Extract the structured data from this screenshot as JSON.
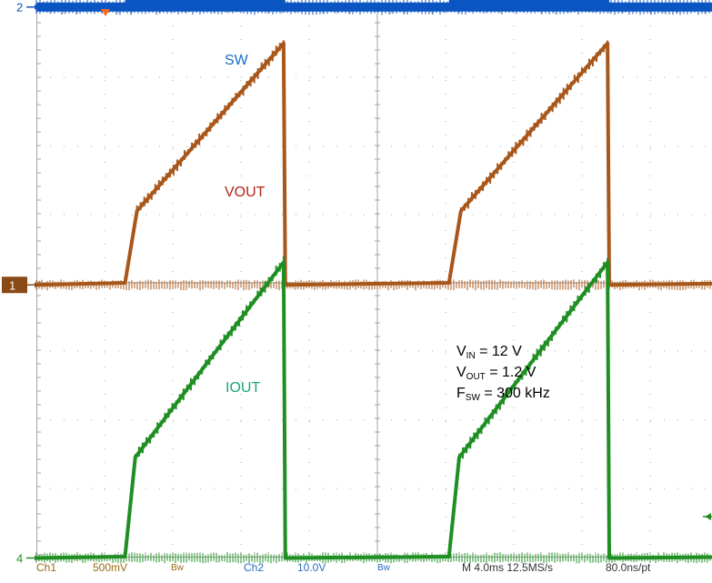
{
  "colors": {
    "sw": "#0a55c2",
    "vout": "#a8571a",
    "iout": "#1f8f23",
    "grid": "#a6a6a6",
    "marker_ch1": "#8a4a16",
    "status_text": "#9a6a10",
    "status_blue": "#2a6bbd",
    "trigger": "#ff6a1a"
  },
  "chart_data": {
    "type": "line",
    "title": "",
    "xlabel": "",
    "ylabel": "",
    "grid": true,
    "x_unit": "ms",
    "x_range": [
      0,
      40
    ],
    "x_per_div": 4.0,
    "divisions": {
      "x": 10,
      "y": 8
    },
    "series": [
      {
        "name": "SW",
        "channel": "2",
        "color": "#0a55c2",
        "shape": "burst",
        "low_div": 4.03,
        "high_div": 7.3,
        "bursts": [
          [
            5.2,
            14.6
          ],
          [
            24.2,
            33.6
          ],
          [
            43.2,
            52.6
          ]
        ]
      },
      {
        "name": "VOUT",
        "channel": "1",
        "color": "#a8571a",
        "shape": "ramp",
        "base_div": -0.03,
        "ramps": [
          {
            "x": [
              5.2,
              5.9,
              14.5,
              14.6
            ],
            "y_div": [
              0.0,
              1.05,
              3.5,
              0.0
            ]
          },
          {
            "x": [
              24.2,
              24.9,
              33.5,
              33.6
            ],
            "y_div": [
              0.0,
              1.05,
              3.5,
              0.0
            ]
          },
          {
            "x": [
              43.2,
              43.9,
              52.5,
              52.6
            ],
            "y_div": [
              0.0,
              1.05,
              3.5,
              0.0
            ]
          }
        ]
      },
      {
        "name": "IOUT",
        "channel": "4",
        "color": "#1f8f23",
        "shape": "ramp",
        "base_div": -4.02,
        "ramps": [
          {
            "x": [
              5.2,
              5.8,
              14.5,
              14.6
            ],
            "y_div": [
              -4.0,
              -2.55,
              0.3,
              -4.0
            ]
          },
          {
            "x": [
              24.2,
              24.8,
              33.5,
              33.6
            ],
            "y_div": [
              -4.0,
              -2.55,
              0.3,
              -4.0
            ]
          },
          {
            "x": [
              43.2,
              43.8,
              52.5,
              52.6
            ],
            "y_div": [
              -4.0,
              -2.55,
              0.3,
              -4.0
            ]
          }
        ]
      }
    ],
    "labels": [
      {
        "text": "SW",
        "color": "#1a6cc4"
      },
      {
        "text": "VOUT",
        "color": "#b02418"
      },
      {
        "text": "IOUT",
        "color": "#1aa57c"
      }
    ],
    "annotations": [
      {
        "main": "V",
        "sub": "IN",
        "rest": " = 12 V"
      },
      {
        "main": "V",
        "sub": "OUT",
        "rest": " = 1.2 V"
      },
      {
        "main": "F",
        "sub": "SW",
        "rest": " = 300 kHz"
      }
    ],
    "channel_markers": [
      "2",
      "1",
      "4"
    ]
  },
  "status_bar": {
    "ch1": "Ch1",
    "ch1_scale": "500mV",
    "ch1_bw": "Bw",
    "ch2": "Ch2",
    "ch2_scale": "10.0V",
    "ch2_bw": "Bw",
    "timebase": "M 4.0ms 12.5MS/s",
    "resolution": "80.0ns/pt"
  }
}
